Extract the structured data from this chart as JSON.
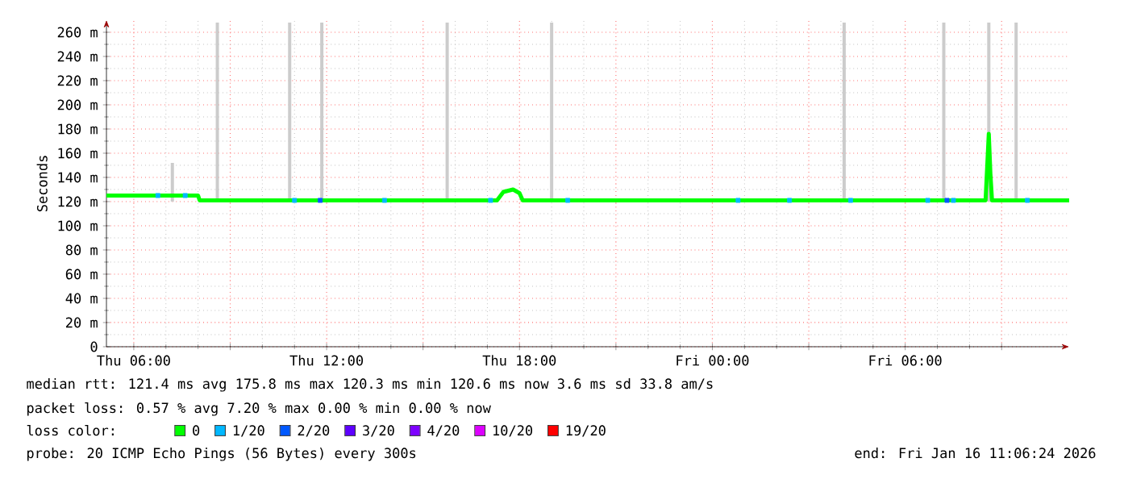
{
  "chart_data": {
    "type": "line",
    "ylabel": "Seconds",
    "xlim": [
      "2026-01-15T05:09",
      "2026-01-16T11:06"
    ],
    "xticks": [
      {
        "value": "2026-01-15T06:00",
        "label": "Thu 06:00"
      },
      {
        "value": "2026-01-15T09:00",
        "label": null
      },
      {
        "value": "2026-01-15T12:00",
        "label": "Thu 12:00"
      },
      {
        "value": "2026-01-15T15:00",
        "label": null
      },
      {
        "value": "2026-01-15T18:00",
        "label": "Thu 18:00"
      },
      {
        "value": "2026-01-15T21:00",
        "label": null
      },
      {
        "value": "2026-01-16T00:00",
        "label": "Fri 00:00"
      },
      {
        "value": "2026-01-16T03:00",
        "label": null
      },
      {
        "value": "2026-01-16T06:00",
        "label": "Fri 06:00"
      },
      {
        "value": "2026-01-16T09:00",
        "label": null
      }
    ],
    "ylim": [
      0,
      270
    ],
    "yticks": [
      0,
      {
        "value": 20,
        "label": "20 m"
      },
      {
        "value": 40,
        "label": "40 m"
      },
      {
        "value": 60,
        "label": "60 m"
      },
      {
        "value": 80,
        "label": "80 m"
      },
      {
        "value": 100,
        "label": "100 m"
      },
      {
        "value": 120,
        "label": "120 m"
      },
      {
        "value": 140,
        "label": "140 m"
      },
      {
        "value": 160,
        "label": "160 m"
      },
      {
        "value": 180,
        "label": "180 m"
      },
      {
        "value": 200,
        "label": "200 m"
      },
      {
        "value": 220,
        "label": "220 m"
      },
      {
        "value": 240,
        "label": "240 m"
      },
      {
        "value": 260,
        "label": "260 m"
      }
    ],
    "grid": true,
    "legend": "bottom",
    "series": [
      {
        "type": "bar",
        "color": "#cccccc",
        "x": [
          "2026-01-15T07:12",
          "2026-01-15T08:36",
          "2026-01-15T10:51",
          "2026-01-15T11:51",
          "2026-01-15T15:45",
          "2026-01-15T19:00",
          "2026-01-16T04:06",
          "2026-01-16T07:12",
          "2026-01-16T08:36",
          "2026-01-16T09:27"
        ],
        "base": [
          120,
          120,
          120,
          120,
          120,
          120,
          120,
          120,
          120,
          120
        ],
        "values": [
          32,
          148,
          148,
          148,
          148,
          148,
          148,
          148,
          148,
          148
        ]
      },
      {
        "type": "line",
        "name": "0",
        "color": "#00ff00",
        "x": [
          "2026-01-15T05:09",
          "2026-01-15T08:00",
          "2026-01-15T08:03",
          "2026-01-15T17:18",
          "2026-01-15T17:30",
          "2026-01-15T17:48",
          "2026-01-15T18:00",
          "2026-01-15T18:06",
          "2026-01-16T08:30",
          "2026-01-16T08:36",
          "2026-01-16T08:39",
          "2026-01-16T08:42",
          "2026-01-16T11:06"
        ],
        "values": [
          125,
          125,
          121,
          121,
          128,
          130,
          127,
          121,
          121,
          176,
          143,
          121,
          121
        ]
      },
      {
        "type": "scatter",
        "name": "1/20",
        "color": "#00b8ff",
        "marker": "square",
        "x": [
          "2026-01-15T06:45",
          "2026-01-15T07:36",
          "2026-01-15T11:00",
          "2026-01-15T13:48",
          "2026-01-15T17:06",
          "2026-01-15T19:30",
          "2026-01-16T00:48",
          "2026-01-16T02:24",
          "2026-01-16T04:18",
          "2026-01-16T06:42",
          "2026-01-16T07:30",
          "2026-01-16T09:48"
        ],
        "values": [
          125,
          125,
          121,
          121,
          121,
          121,
          121,
          121,
          121,
          121,
          121,
          121
        ]
      },
      {
        "type": "scatter",
        "name": "2/20",
        "color": "#0059ff",
        "marker": "square",
        "x": [
          "2026-01-15T11:48",
          "2026-01-16T07:18"
        ],
        "values": [
          121,
          121
        ]
      },
      {
        "type": "scatter",
        "name": "3/20",
        "color": "#5e00ff"
      },
      {
        "type": "scatter",
        "name": "4/20",
        "color": "#7e00ff"
      },
      {
        "type": "scatter",
        "name": "10/20",
        "color": "#dd00ff"
      },
      {
        "type": "scatter",
        "name": "19/20",
        "color": "#ff0000"
      }
    ],
    "annotations": [
      "median rtt:  121.4 ms avg  175.8 ms max  120.3 ms min  120.6 ms now  3.6 ms sd  33.8   am/s",
      "packet loss: 0.57 % avg  7.20 % max  0.00 % min  0.00 % now",
      "loss color:",
      "probe:       20 ICMP Echo Pings (56 Bytes) every 300s",
      "end: Fri Jan 16 11:06:24 2026"
    ]
  }
}
